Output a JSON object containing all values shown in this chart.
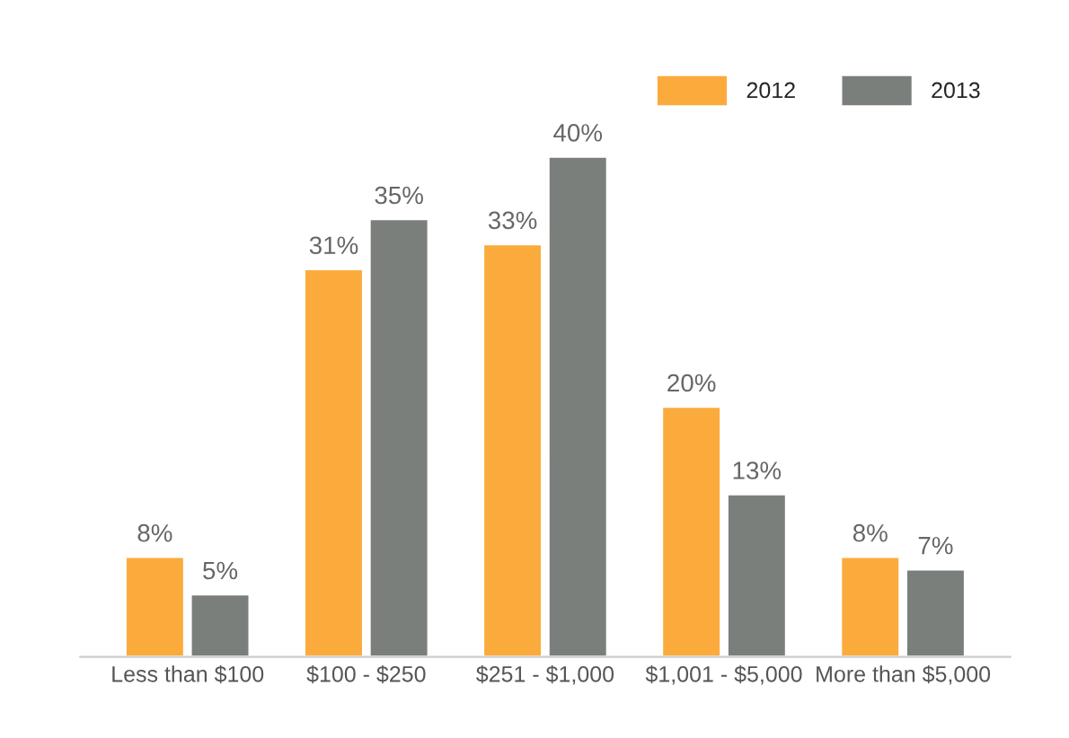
{
  "chart_data": {
    "type": "bar",
    "categories": [
      "Less than $100",
      "$100 - $250",
      "$251 - $1,000",
      "$1,001 - $5,000",
      "More than $5,000"
    ],
    "series": [
      {
        "name": "2012",
        "color": "#fbab3c",
        "values": [
          8,
          31,
          33,
          20,
          8
        ],
        "value_labels": [
          "8%",
          "31%",
          "33%",
          "20%",
          "8%"
        ]
      },
      {
        "name": "2013",
        "color": "#7a7f7c",
        "values": [
          5,
          35,
          40,
          13,
          7
        ],
        "value_labels": [
          "5%",
          "35%",
          "40%",
          "13%",
          "7%"
        ]
      }
    ],
    "legend": "top right",
    "grid": false,
    "tick_labels": "x"
  }
}
